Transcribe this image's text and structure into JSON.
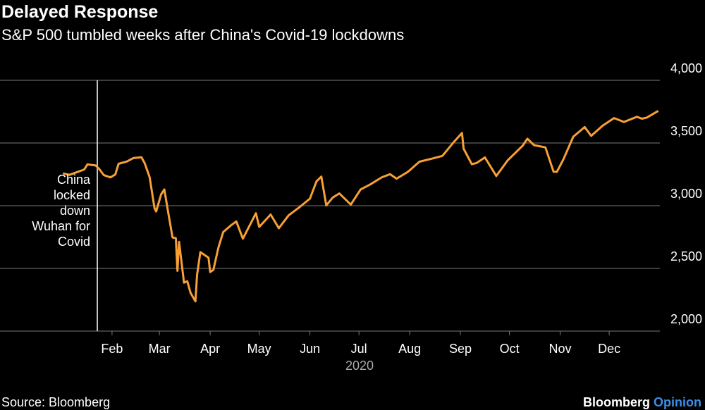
{
  "chart_data": {
    "type": "line",
    "title": "Delayed Response",
    "subtitle": "S&P 500 tumbled weeks after China's Covid-19 lockdowns",
    "x_label": "2020",
    "color": "#f7a035",
    "grid": true,
    "x": [
      1,
      5,
      9,
      14,
      16,
      21,
      23,
      26,
      30,
      33,
      35,
      40,
      44,
      49,
      51,
      54,
      57,
      58,
      61,
      63,
      65,
      68,
      70,
      71,
      72,
      75,
      77,
      79,
      82,
      83,
      85,
      90,
      91,
      93,
      96,
      99,
      104,
      107,
      111,
      119,
      121,
      128,
      133,
      139,
      146,
      152,
      156,
      159,
      162,
      166,
      170,
      177,
      183,
      189,
      196,
      201,
      205,
      212,
      219,
      226,
      233,
      240,
      245,
      246,
      251,
      254,
      259,
      266,
      273,
      282,
      285,
      289,
      296,
      301,
      303,
      307,
      313,
      320,
      324,
      331,
      338,
      344,
      352,
      355,
      358,
      365
    ],
    "values": [
      3258,
      3246,
      3265,
      3289,
      3330,
      3321,
      3295,
      3244,
      3226,
      3249,
      3334,
      3352,
      3380,
      3386,
      3338,
      3226,
      2979,
      2954,
      3090,
      3130,
      2972,
      2747,
      2741,
      2481,
      2711,
      2386,
      2398,
      2305,
      2237,
      2447,
      2630,
      2585,
      2471,
      2489,
      2664,
      2790,
      2846,
      2875,
      2737,
      2940,
      2831,
      2930,
      2820,
      2923,
      2992,
      3056,
      3194,
      3232,
      3002,
      3066,
      3098,
      3009,
      3130,
      3170,
      3227,
      3251,
      3216,
      3271,
      3351,
      3373,
      3397,
      3508,
      3580,
      3455,
      3331,
      3341,
      3385,
      3237,
      3363,
      3477,
      3534,
      3483,
      3465,
      3271,
      3270,
      3369,
      3550,
      3627,
      3557,
      3638,
      3699,
      3668,
      3709,
      3694,
      3703,
      3756
    ],
    "xlim": [
      0,
      366
    ],
    "xticks": [
      {
        "value": 31,
        "label": "Feb"
      },
      {
        "value": 60,
        "label": "Mar"
      },
      {
        "value": 91,
        "label": "Apr"
      },
      {
        "value": 121,
        "label": "May"
      },
      {
        "value": 152,
        "label": "Jun"
      },
      {
        "value": 182,
        "label": "Jul"
      },
      {
        "value": 213,
        "label": "Aug"
      },
      {
        "value": 244,
        "label": "Sep"
      },
      {
        "value": 274,
        "label": "Oct"
      },
      {
        "value": 305,
        "label": "Nov"
      },
      {
        "value": 335,
        "label": "Dec"
      }
    ],
    "ylim": [
      2000,
      4000
    ],
    "yticks": [
      {
        "value": 2000,
        "label": "2,000"
      },
      {
        "value": 2500,
        "label": "2,500"
      },
      {
        "value": 3000,
        "label": "3,000"
      },
      {
        "value": 3500,
        "label": "3,500"
      },
      {
        "value": 4000,
        "label": "4,000"
      }
    ],
    "annotation": {
      "text": "China locked down Wuhan for Covid",
      "x": 22
    },
    "source": "Source: Bloomberg",
    "brand": "Bloomberg",
    "brand_suffix": "Opinion"
  }
}
